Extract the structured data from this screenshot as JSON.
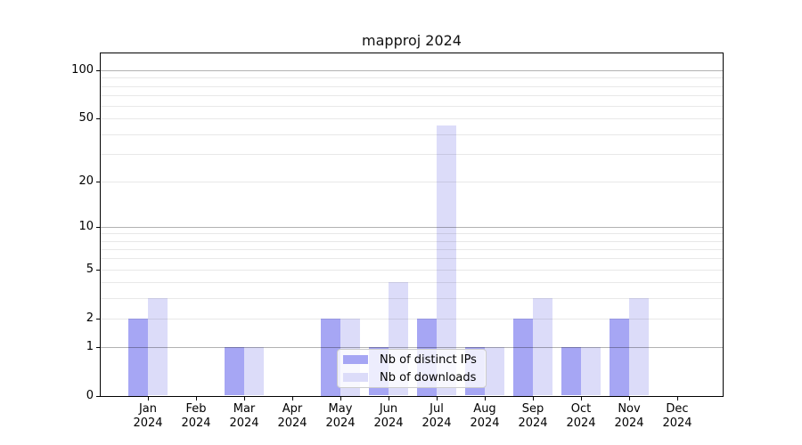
{
  "title": "mapproj 2024",
  "legend": {
    "items": [
      {
        "label": "Nb of distinct IPs",
        "color": "#a6a6f4"
      },
      {
        "label": "Nb of downloads",
        "color": "#dcdcf9"
      }
    ]
  },
  "chart_data": {
    "type": "bar",
    "title": "mapproj 2024",
    "categories": [
      "Jan",
      "Feb",
      "Mar",
      "Apr",
      "May",
      "Jun",
      "Jul",
      "Aug",
      "Sep",
      "Oct",
      "Nov",
      "Dec"
    ],
    "year_label": "2024",
    "series": [
      {
        "name": "Nb of distinct IPs",
        "color": "#a6a6f4",
        "values": [
          2,
          0,
          1,
          0,
          2,
          1,
          2,
          1,
          2,
          1,
          2,
          0
        ]
      },
      {
        "name": "Nb of downloads",
        "color": "#dcdcf9",
        "values": [
          3,
          0,
          1,
          0,
          2,
          4,
          45,
          1,
          3,
          1,
          3,
          0
        ]
      }
    ],
    "xlabel": "",
    "ylabel": "",
    "yscale": "log1p",
    "ylim": [
      0,
      128
    ],
    "ytick_labels": [
      0,
      1,
      2,
      5,
      10,
      20,
      50,
      100
    ],
    "major_gridlines": [
      1,
      10,
      100
    ],
    "minor_gridlines": [
      2,
      3,
      4,
      5,
      6,
      7,
      8,
      9,
      20,
      30,
      40,
      50,
      60,
      70,
      80,
      90
    ],
    "grid": true,
    "legend_position": "lower center"
  }
}
